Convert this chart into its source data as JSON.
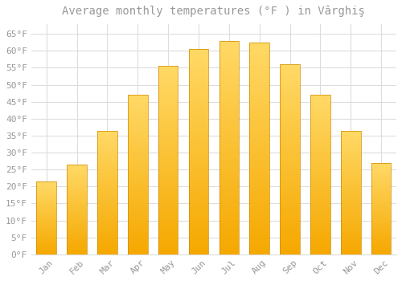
{
  "title": "Average monthly temperatures (°F ) in Vârghiş",
  "months": [
    "Jan",
    "Feb",
    "Mar",
    "Apr",
    "May",
    "Jun",
    "Jul",
    "Aug",
    "Sep",
    "Oct",
    "Nov",
    "Dec"
  ],
  "values": [
    21.5,
    26.5,
    36.5,
    47.0,
    55.5,
    60.5,
    63.0,
    62.5,
    56.0,
    47.0,
    36.5,
    27.0
  ],
  "bar_color_bottom": "#F5A800",
  "bar_color_top": "#FFD966",
  "bar_edge_color": "#CC8800",
  "background_color": "#FFFFFF",
  "grid_color": "#DDDDDD",
  "yticks": [
    0,
    5,
    10,
    15,
    20,
    25,
    30,
    35,
    40,
    45,
    50,
    55,
    60,
    65
  ],
  "ylim": [
    0,
    68
  ],
  "title_fontsize": 10,
  "tick_fontsize": 8,
  "font_color": "#999999",
  "title_color": "#999999"
}
